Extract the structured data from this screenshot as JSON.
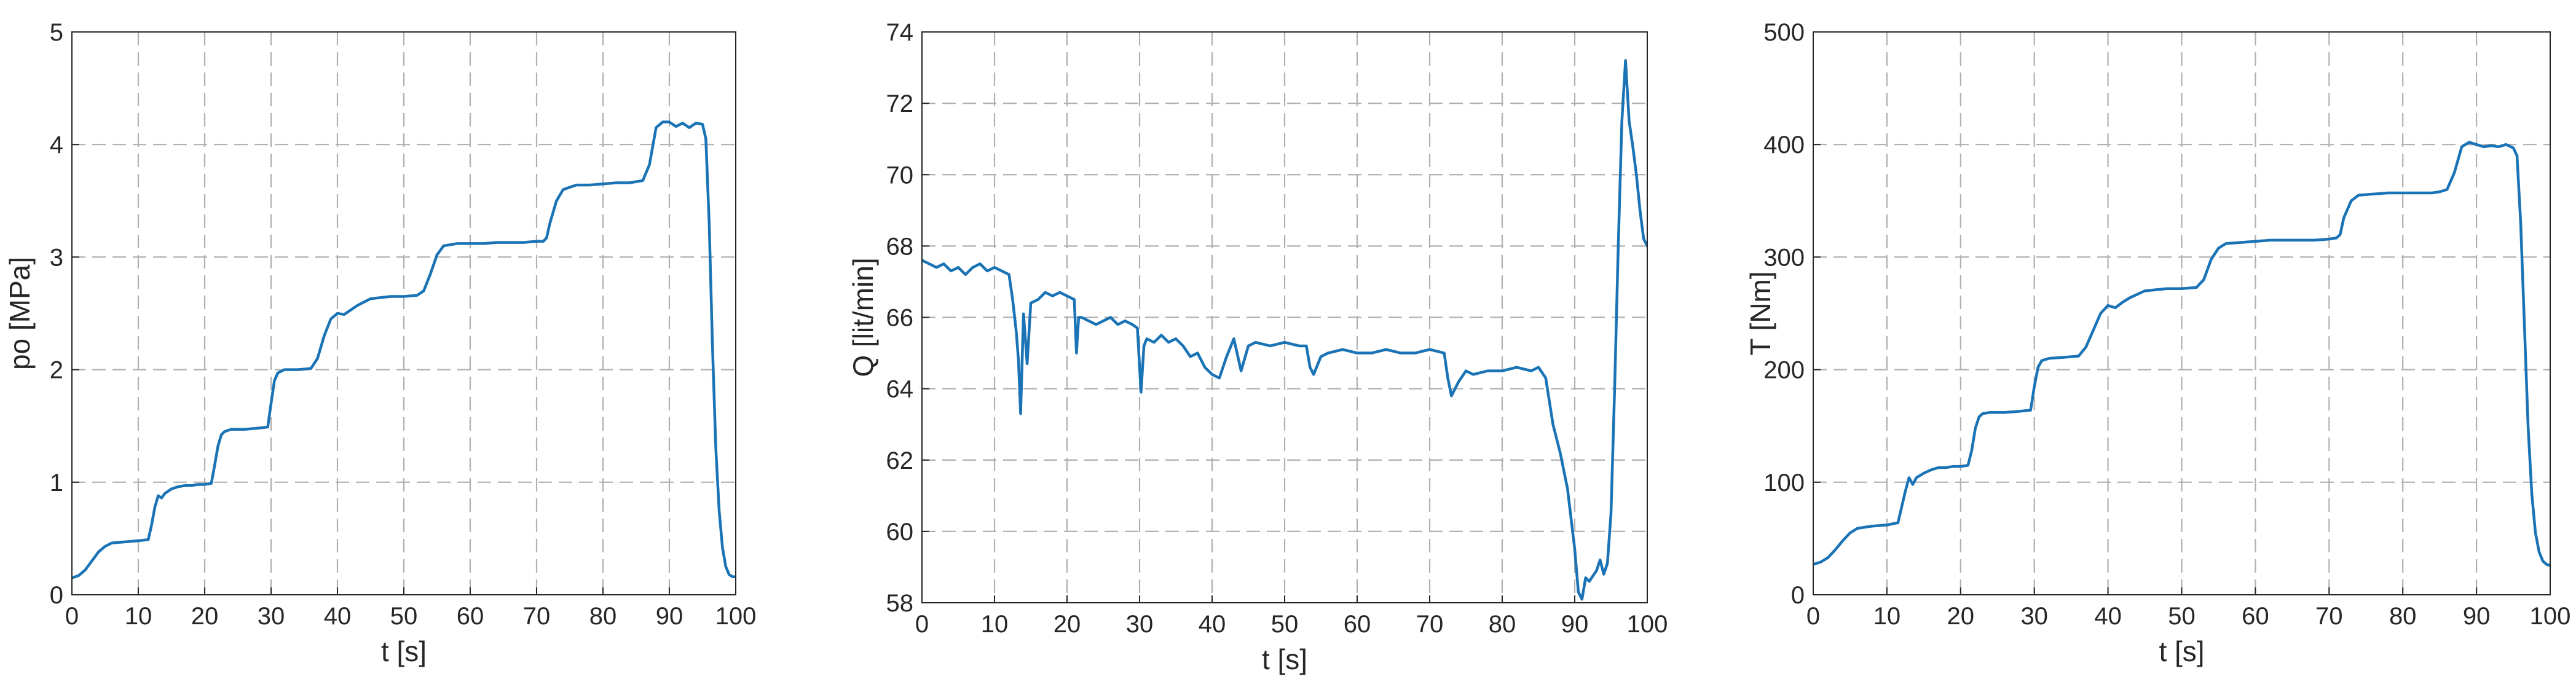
{
  "chart_data": [
    {
      "type": "line",
      "title": "",
      "xlabel": "t [s]",
      "ylabel": "po [MPa]",
      "xlim": [
        0,
        100
      ],
      "ylim": [
        0,
        5
      ],
      "xticks": [
        0,
        10,
        20,
        30,
        40,
        50,
        60,
        70,
        80,
        90,
        100
      ],
      "yticks": [
        0,
        1,
        2,
        3,
        4,
        5
      ],
      "grid": true,
      "color": "#1a73b5",
      "series": [
        {
          "x": [
            0,
            1,
            2,
            3,
            4,
            5,
            6,
            8,
            10,
            11.5,
            12,
            12.5,
            13,
            13.5,
            14,
            15,
            16,
            17,
            18,
            19,
            20,
            21,
            21.5,
            22,
            22.5,
            23,
            24,
            26,
            28,
            29.5,
            30,
            30.5,
            31,
            32,
            34,
            36,
            37,
            38,
            39,
            40,
            41,
            42,
            43,
            44,
            45,
            48,
            50,
            52,
            53,
            54,
            55,
            56,
            58,
            60,
            62,
            64,
            66,
            68,
            70,
            71,
            71.5,
            72,
            73,
            74,
            76,
            78,
            80,
            82,
            84,
            85,
            86,
            87,
            88,
            89,
            90,
            91,
            92,
            93,
            94,
            95,
            95.5,
            96,
            96.5,
            97,
            97.5,
            98,
            98.5,
            99,
            99.5,
            100
          ],
          "y": [
            0.15,
            0.17,
            0.22,
            0.3,
            0.38,
            0.43,
            0.46,
            0.47,
            0.48,
            0.49,
            0.62,
            0.78,
            0.88,
            0.86,
            0.9,
            0.94,
            0.96,
            0.97,
            0.97,
            0.98,
            0.98,
            0.99,
            1.15,
            1.32,
            1.42,
            1.45,
            1.47,
            1.47,
            1.48,
            1.49,
            1.7,
            1.9,
            1.97,
            2.0,
            2.0,
            2.01,
            2.1,
            2.3,
            2.45,
            2.5,
            2.49,
            2.53,
            2.57,
            2.6,
            2.63,
            2.65,
            2.65,
            2.66,
            2.7,
            2.85,
            3.02,
            3.1,
            3.12,
            3.12,
            3.12,
            3.13,
            3.13,
            3.13,
            3.14,
            3.14,
            3.17,
            3.3,
            3.5,
            3.6,
            3.64,
            3.64,
            3.65,
            3.66,
            3.66,
            3.67,
            3.68,
            3.82,
            4.15,
            4.2,
            4.2,
            4.16,
            4.19,
            4.15,
            4.19,
            4.18,
            4.05,
            3.3,
            2.2,
            1.3,
            0.75,
            0.42,
            0.25,
            0.18,
            0.16,
            0.16
          ]
        }
      ]
    },
    {
      "type": "line",
      "title": "",
      "xlabel": "t [s]",
      "ylabel": "Q [lit/min]",
      "xlim": [
        0,
        100
      ],
      "ylim": [
        58,
        74
      ],
      "xticks": [
        0,
        10,
        20,
        30,
        40,
        50,
        60,
        70,
        80,
        90,
        100
      ],
      "yticks": [
        58,
        60,
        62,
        64,
        66,
        68,
        70,
        72,
        74
      ],
      "grid": true,
      "color": "#1a73b5",
      "series": [
        {
          "x": [
            0,
            1,
            2,
            3,
            4,
            5,
            6,
            7,
            8,
            9,
            10,
            11,
            12,
            12.5,
            13,
            13.3,
            13.6,
            14,
            14.5,
            15,
            16,
            17,
            18,
            19,
            20,
            21,
            21.3,
            21.6,
            22,
            23,
            24,
            25,
            26,
            27,
            28,
            29,
            29.7,
            30.2,
            30.6,
            31,
            32,
            33,
            34,
            35,
            36,
            37,
            38,
            39,
            40,
            41,
            42,
            43,
            44,
            45,
            46,
            48,
            50,
            52,
            53,
            53.5,
            54,
            55,
            56,
            58,
            60,
            62,
            64,
            66,
            68,
            70,
            72,
            72.5,
            73,
            74,
            75,
            76,
            78,
            80,
            82,
            84,
            85,
            86,
            87,
            88,
            89,
            90,
            90.5,
            91,
            91.5,
            92,
            93,
            93.5,
            94,
            94.5,
            95,
            95.5,
            96,
            96.5,
            97,
            97.5,
            98,
            98.5,
            99,
            99.5,
            100
          ],
          "y": [
            67.6,
            67.5,
            67.4,
            67.5,
            67.3,
            67.4,
            67.2,
            67.4,
            67.5,
            67.3,
            67.4,
            67.3,
            67.2,
            66.5,
            65.6,
            64.8,
            63.3,
            66.1,
            64.7,
            66.4,
            66.5,
            66.7,
            66.6,
            66.7,
            66.6,
            66.5,
            65.0,
            66.0,
            66.0,
            65.9,
            65.8,
            65.9,
            66.0,
            65.8,
            65.9,
            65.8,
            65.7,
            63.9,
            65.2,
            65.4,
            65.3,
            65.5,
            65.3,
            65.4,
            65.2,
            64.9,
            65.0,
            64.6,
            64.4,
            64.3,
            64.9,
            65.4,
            64.5,
            65.2,
            65.3,
            65.2,
            65.3,
            65.2,
            65.2,
            64.6,
            64.4,
            64.9,
            65.0,
            65.1,
            65.0,
            65.0,
            65.1,
            65.0,
            65.0,
            65.1,
            65.0,
            64.3,
            63.8,
            64.2,
            64.5,
            64.4,
            64.5,
            64.5,
            64.6,
            64.5,
            64.6,
            64.3,
            63.0,
            62.2,
            61.2,
            59.5,
            58.3,
            58.1,
            58.7,
            58.6,
            58.9,
            59.2,
            58.8,
            59.1,
            60.5,
            64.0,
            68.0,
            71.5,
            73.2,
            71.5,
            70.8,
            70.0,
            69.0,
            68.2,
            68.0
          ]
        }
      ]
    },
    {
      "type": "line",
      "title": "",
      "xlabel": "t [s]",
      "ylabel": "T [Nm]",
      "xlim": [
        0,
        100
      ],
      "ylim": [
        0,
        500
      ],
      "xticks": [
        0,
        10,
        20,
        30,
        40,
        50,
        60,
        70,
        80,
        90,
        100
      ],
      "yticks": [
        0,
        100,
        200,
        300,
        400,
        500
      ],
      "grid": true,
      "color": "#1a73b5",
      "series": [
        {
          "x": [
            0,
            1,
            2,
            3,
            4,
            5,
            6,
            8,
            10,
            11.5,
            12,
            12.5,
            13,
            13.5,
            14,
            15,
            16,
            17,
            18,
            19,
            20,
            21,
            21.5,
            22,
            22.5,
            23,
            24,
            26,
            28,
            29.5,
            30,
            30.5,
            31,
            32,
            34,
            36,
            37,
            38,
            39,
            40,
            41,
            42,
            43,
            44,
            45,
            48,
            50,
            52,
            53,
            54,
            55,
            56,
            58,
            60,
            62,
            64,
            66,
            68,
            70,
            71,
            71.5,
            72,
            73,
            74,
            76,
            78,
            80,
            82,
            84,
            85,
            86,
            87,
            88,
            89,
            90,
            91,
            92,
            93,
            94,
            95,
            95.5,
            96,
            96.5,
            97,
            97.5,
            98,
            98.5,
            99,
            99.5,
            100
          ],
          "y": [
            27,
            29,
            33,
            40,
            48,
            55,
            59,
            61,
            62,
            64,
            78,
            92,
            104,
            98,
            104,
            108,
            111,
            113,
            113,
            114,
            114,
            115,
            128,
            148,
            158,
            161,
            162,
            162,
            163,
            164,
            185,
            202,
            208,
            210,
            211,
            212,
            220,
            235,
            250,
            257,
            255,
            260,
            264,
            267,
            270,
            272,
            272,
            273,
            280,
            298,
            308,
            312,
            313,
            314,
            315,
            315,
            315,
            315,
            316,
            317,
            320,
            335,
            350,
            355,
            356,
            357,
            357,
            357,
            357,
            358,
            360,
            375,
            398,
            402,
            400,
            398,
            399,
            398,
            400,
            397,
            390,
            330,
            240,
            150,
            90,
            55,
            38,
            30,
            27,
            26
          ]
        }
      ]
    }
  ]
}
